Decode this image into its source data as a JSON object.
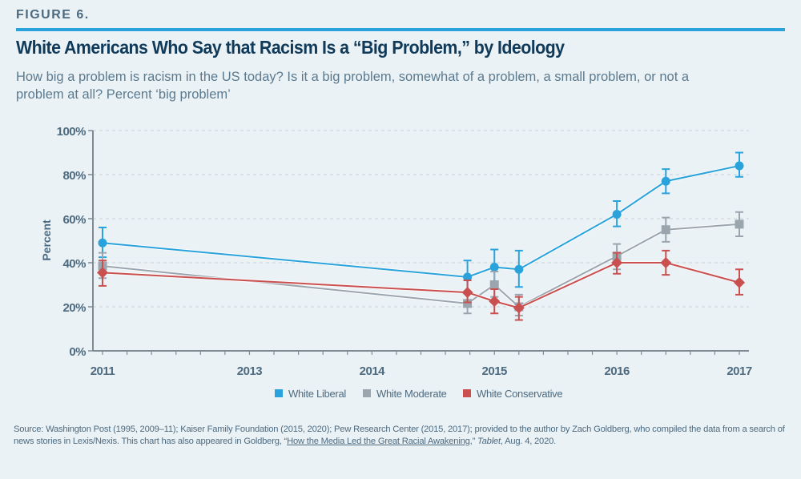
{
  "figure_label": "FIGURE 6.",
  "title": "White Americans Who Say that Racism Is a “Big Problem,” by Ideology",
  "subtitle": "How big a problem is racism in the US today? Is it a big problem, somewhat of a problem, a small problem, or not a problem at all? Percent ‘big problem’",
  "source": {
    "part1": "Source: Washington Post (1995, 2009–11); Kaiser Family Foundation (2015, 2020); Pew Research Center (2015, 2017); provided to the author by Zach Goldberg, who compiled the data from a search of news stories in Lexis/Nexis. This chart has also appeared in Goldberg, “",
    "link": "How the Media Led the Great Racial Awakening,",
    "part2": "” ",
    "italic": "Tablet",
    "part3": ", Aug. 4, 2020."
  },
  "chart_data": {
    "type": "line",
    "title": "White Americans Who Say that Racism Is a “Big Problem,” by Ideology",
    "xlabel": "",
    "ylabel": "Percent",
    "ylim": [
      0,
      100
    ],
    "yticks": [
      "0%",
      "20%",
      "40%",
      "60%",
      "80%",
      "100%"
    ],
    "ytick_values": [
      0,
      20,
      40,
      60,
      80,
      100
    ],
    "xtick_labels": [
      {
        "label": "2011",
        "pos": 0
      },
      {
        "label": "2013",
        "pos": 6
      },
      {
        "label": "2014",
        "pos": 11
      },
      {
        "label": "2015",
        "pos": 16
      },
      {
        "label": "2016",
        "pos": 21
      },
      {
        "label": "2017",
        "pos": 26
      }
    ],
    "x_range": [
      -0.4,
      26.4
    ],
    "x_minor_ticks": 27,
    "grid": true,
    "legend": "bottom-center",
    "x": [
      0,
      14.9,
      16,
      17,
      21,
      23,
      26
    ],
    "series": [
      {
        "name": "White Liberal",
        "color": "#2aa3dc",
        "marker": "circle",
        "values": [
          49,
          33.5,
          38,
          37,
          62,
          77,
          84
        ],
        "error_low": [
          42.5,
          26,
          29.5,
          29,
          56.5,
          71.5,
          79
        ],
        "error_high": [
          56,
          41,
          46,
          45.5,
          68,
          82.5,
          90
        ]
      },
      {
        "name": "White Moderate",
        "color": "#9aa5ae",
        "marker": "square",
        "values": [
          38.5,
          21.5,
          30,
          20,
          43,
          55,
          57.5
        ],
        "error_low": [
          33,
          17,
          24.5,
          16,
          37,
          49.5,
          52
        ],
        "error_high": [
          44.5,
          26.5,
          36,
          25.5,
          48.5,
          60.5,
          63
        ]
      },
      {
        "name": "White Conservative",
        "color": "#c9504f",
        "marker": "diamond",
        "values": [
          35.5,
          26.5,
          22.5,
          19.5,
          40,
          40,
          31
        ],
        "error_low": [
          29.5,
          22,
          17,
          14,
          35,
          34.5,
          25.5
        ],
        "error_high": [
          41,
          32,
          28,
          24.5,
          44.5,
          45.5,
          37
        ]
      }
    ]
  }
}
